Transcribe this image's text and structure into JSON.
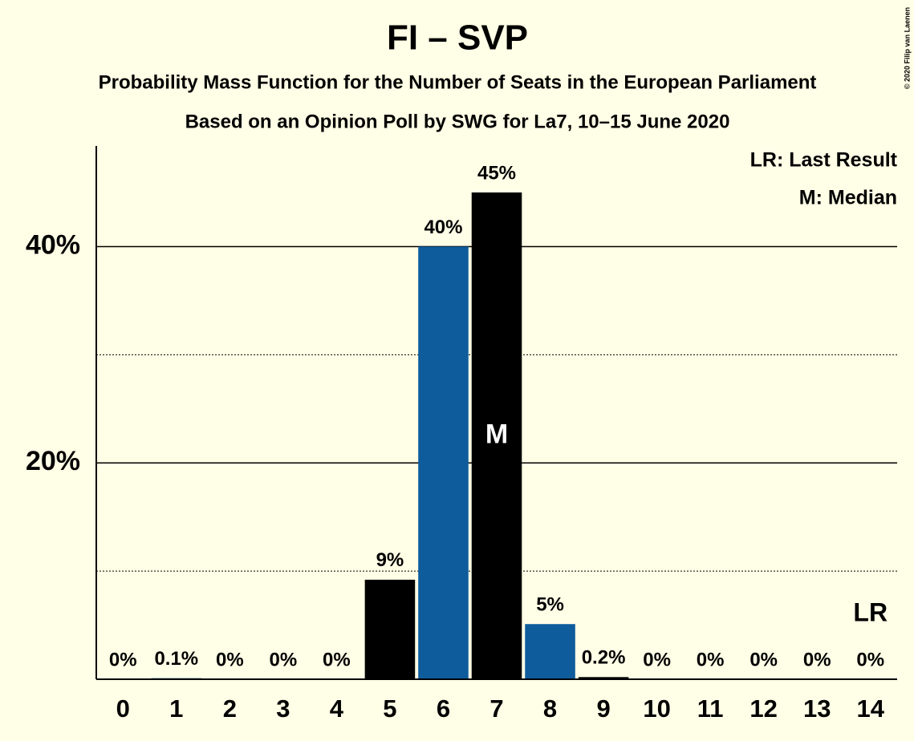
{
  "chart_data": {
    "type": "bar",
    "title": "FI – SVP",
    "subtitle": [
      "Probability Mass Function for the Number of Seats in the European Parliament",
      "Based on an Opinion Poll by SWG for La7, 10–15 June 2020"
    ],
    "categories": [
      "0",
      "1",
      "2",
      "3",
      "4",
      "5",
      "6",
      "7",
      "8",
      "9",
      "10",
      "11",
      "12",
      "13",
      "14"
    ],
    "values": [
      0,
      0.1,
      0,
      0,
      0,
      9.2,
      40,
      45,
      5.1,
      0.2,
      0,
      0,
      0,
      0,
      0
    ],
    "value_labels": [
      "0%",
      "0.1%",
      "0%",
      "0%",
      "0%",
      "9%",
      "40%",
      "45%",
      "5%",
      "0.2%",
      "0%",
      "0%",
      "0%",
      "0%",
      "0%"
    ],
    "colors": [
      "#000000",
      "#0e5c9c",
      "#000000",
      "#0e5c9c",
      "#000000",
      "#000000",
      "#0e5c9c",
      "#000000",
      "#0e5c9c",
      "#000000",
      "#0e5c9c",
      "#000000",
      "#0e5c9c",
      "#000000",
      "#0e5c9c"
    ],
    "ylim": [
      0,
      49.3
    ],
    "yticks": [
      {
        "value": 20,
        "label": "20%"
      },
      {
        "value": 40,
        "label": "40%"
      }
    ],
    "minor_yticks": [
      10,
      30
    ],
    "grid": true,
    "legend": [
      "LR: Last Result",
      "M: Median"
    ],
    "median": {
      "label": "M",
      "category": "7"
    },
    "last_result": {
      "label": "LR",
      "category": "14"
    },
    "copyright": "© 2020 Filip van Laenen"
  }
}
